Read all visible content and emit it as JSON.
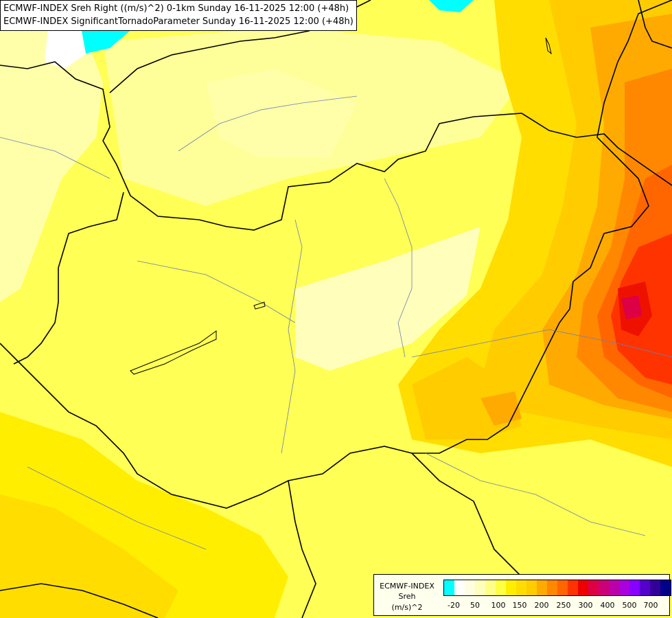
{
  "title": {
    "line1": "ECMWF-INDEX Sreh Right ((m/s)^2) 0-1km Sunday 16-11-2025 12:00 (+48h)",
    "line2": "ECMWF-INDEX SignificantTornadoParameter Sunday 16-11-2025 12:00 (+48h)"
  },
  "legend": {
    "label_line1": "ECMWF-INDEX",
    "label_line2": "Sreh",
    "label_line3": "(m/s)^2",
    "colors": [
      "#00ffff",
      "#ffffff",
      "#ffffe0",
      "#ffffbb",
      "#ffff88",
      "#ffff44",
      "#ffee00",
      "#ffdd00",
      "#ffcc00",
      "#ffaa00",
      "#ff8800",
      "#ff6600",
      "#ff3300",
      "#ee0000",
      "#dd0044",
      "#cc0077",
      "#bb00aa",
      "#aa00dd",
      "#8800ff",
      "#5500cc",
      "#330099",
      "#000088"
    ],
    "ticks": [
      "-20",
      "50",
      "100",
      "150",
      "200",
      "250",
      "300",
      "400",
      "500",
      "700"
    ]
  }
}
